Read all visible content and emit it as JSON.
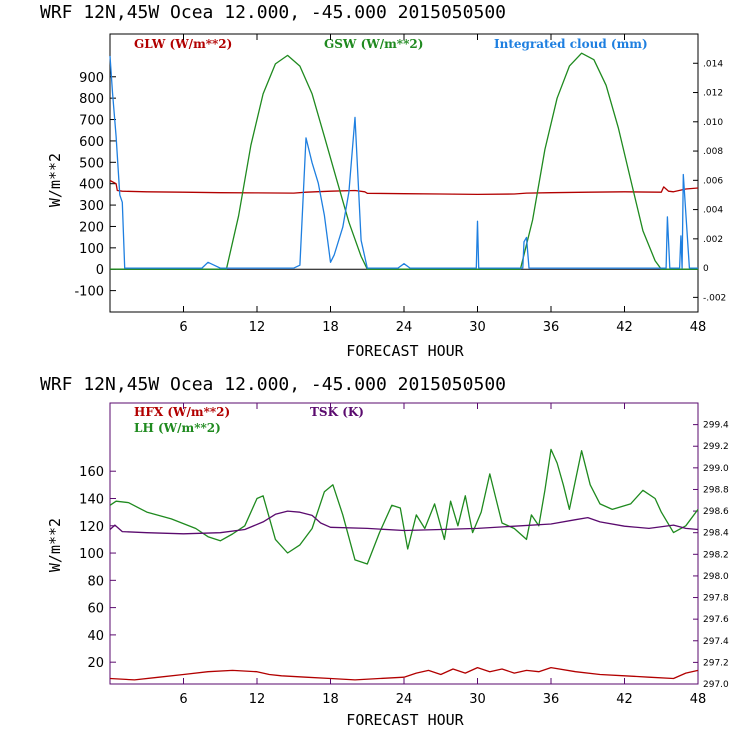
{
  "colors": {
    "glw": "#b20000",
    "gsw": "#1f8a1f",
    "cloud": "#1e7fe0",
    "hfx": "#b20000",
    "lh": "#1f8a1f",
    "tsk": "#5a0a6e",
    "frame_top": "#000000",
    "frame_bottom": "#5a0a6e"
  },
  "chart_data": [
    {
      "type": "line",
      "title": "WRF   12N,45W Ocea  12.000, -45.000  2015050500",
      "xlabel": "FORECAST HOUR",
      "ylabel": "W/m**2",
      "xlim": [
        0,
        48
      ],
      "ylim": [
        -200,
        1100
      ],
      "xticks": [
        6,
        12,
        18,
        24,
        30,
        36,
        42,
        48
      ],
      "xtick_labels": [
        "6",
        "12",
        "18",
        "24",
        "30",
        "36",
        "42",
        "48"
      ],
      "yticks": [
        -100,
        0,
        100,
        200,
        300,
        400,
        500,
        600,
        700,
        800,
        900
      ],
      "ytick_labels": [
        "-100",
        "0",
        "100",
        "200",
        "300",
        "400",
        "500",
        "600",
        "700",
        "800",
        "900"
      ],
      "y2label": "Integrated cloud (mm)",
      "y2lim": [
        -0.003,
        0.016
      ],
      "y2ticks": [
        -0.002,
        0,
        0.002,
        0.004,
        0.006,
        0.008,
        0.01,
        0.012,
        0.014
      ],
      "y2tick_labels": [
        "-.002",
        "0",
        ".002",
        ".004",
        ".006",
        ".008",
        ".010",
        ".012",
        ".014"
      ],
      "series": [
        {
          "name": "GLW (W/m**2)",
          "axis": "left",
          "x": [
            0,
            0.5,
            0.6,
            1,
            3,
            6,
            9,
            12,
            15,
            16,
            18,
            20,
            20.8,
            21,
            24,
            27,
            30,
            33,
            34,
            36,
            39,
            42,
            45,
            45.2,
            45.6,
            46,
            47,
            48
          ],
          "values": [
            415,
            400,
            368,
            365,
            362,
            360,
            358,
            357,
            356,
            360,
            365,
            368,
            362,
            355,
            353,
            352,
            350,
            352,
            356,
            358,
            360,
            362,
            360,
            385,
            365,
            362,
            375,
            380
          ]
        },
        {
          "name": "GSW (W/m**2)",
          "axis": "left",
          "x": [
            0,
            9.5,
            10.5,
            11.5,
            12.5,
            13.5,
            14.5,
            15.5,
            16.5,
            17.5,
            18.5,
            19.5,
            20.5,
            21,
            33.5,
            34.5,
            35.5,
            36.5,
            37.5,
            38.5,
            39.5,
            40.5,
            41.5,
            42.5,
            43.5,
            44.5,
            45,
            48
          ],
          "values": [
            0,
            0,
            250,
            580,
            820,
            960,
            1000,
            950,
            820,
            620,
            420,
            220,
            60,
            0,
            0,
            230,
            560,
            800,
            950,
            1010,
            980,
            860,
            660,
            420,
            180,
            40,
            0,
            0
          ]
        },
        {
          "name": "Integrated cloud (mm)",
          "axis": "right",
          "x": [
            0,
            0.2,
            0.5,
            0.8,
            1.0,
            1.2,
            2,
            7.5,
            8.0,
            8.5,
            9.0,
            15,
            15.5,
            16.0,
            16.5,
            17.0,
            17.5,
            18.0,
            18.3,
            19.0,
            19.5,
            20.0,
            20.5,
            21.0,
            23.5,
            24.0,
            24.5,
            29.9,
            30.0,
            30.1,
            33.7,
            33.8,
            34.0,
            34.2,
            45.4,
            45.5,
            45.7,
            46.5,
            46.6,
            46.7,
            46.8,
            47.3,
            48
          ],
          "values": [
            0.0145,
            0.012,
            0.009,
            0.005,
            0.0045,
            0,
            0,
            0,
            0.0004,
            0.0002,
            0,
            0,
            0.0002,
            0.0089,
            0.0072,
            0.0058,
            0.0036,
            0.0004,
            0.0009,
            0.0028,
            0.0052,
            0.0103,
            0.0019,
            0,
            0,
            0.0003,
            0,
            0,
            0.0032,
            0,
            0,
            0.0018,
            0.0021,
            0,
            0,
            0.0035,
            0,
            0,
            0.0022,
            0,
            0.0064,
            0,
            0
          ]
        }
      ]
    },
    {
      "type": "line",
      "title": "WRF   12N,45W Ocea  12.000, -45.000  2015050500",
      "xlabel": "FORECAST HOUR",
      "ylabel": "W/m**2",
      "xlim": [
        0,
        48
      ],
      "ylim": [
        4,
        210
      ],
      "xticks": [
        6,
        12,
        18,
        24,
        30,
        36,
        42,
        48
      ],
      "xtick_labels": [
        "6",
        "12",
        "18",
        "24",
        "30",
        "36",
        "42",
        "48"
      ],
      "yticks": [
        20,
        40,
        60,
        80,
        100,
        120,
        140,
        160
      ],
      "ytick_labels": [
        "20",
        "40",
        "60",
        "80",
        "100",
        "120",
        "140",
        "160"
      ],
      "y2label": "TSK (K)",
      "y2lim": [
        297.0,
        299.6
      ],
      "y2ticks": [
        297.0,
        297.2,
        297.4,
        297.6,
        297.8,
        298.0,
        298.2,
        298.4,
        298.6,
        298.8,
        299.0,
        299.2,
        299.4
      ],
      "y2tick_labels": [
        "297.0",
        "297.2",
        "297.4",
        "297.6",
        "297.8",
        "298.0",
        "298.2",
        "298.4",
        "298.6",
        "298.8",
        "299.0",
        "299.2",
        "299.4"
      ],
      "series": [
        {
          "name": "HFX (W/m**2)",
          "axis": "left",
          "x": [
            0,
            2,
            4,
            6,
            8,
            10,
            12,
            13,
            14,
            16,
            18,
            20,
            22,
            24,
            25,
            26,
            27,
            28,
            29,
            30,
            31,
            32,
            33,
            34,
            35,
            36,
            38,
            40,
            42,
            44,
            46,
            47,
            48
          ],
          "values": [
            8,
            7,
            9,
            11,
            13,
            14,
            13,
            11,
            10,
            9,
            8,
            7,
            8,
            9,
            12,
            14,
            11,
            15,
            12,
            16,
            13,
            15,
            12,
            14,
            13,
            16,
            13,
            11,
            10,
            9,
            8,
            12,
            14
          ]
        },
        {
          "name": "LH (W/m**2)",
          "axis": "left",
          "x": [
            0,
            0.5,
            1.5,
            3,
            5,
            7,
            8,
            9,
            10,
            11,
            12,
            12.5,
            13.5,
            14.5,
            15.5,
            16.5,
            17.5,
            18.2,
            19,
            20,
            21,
            22,
            23,
            23.7,
            24.3,
            25,
            25.7,
            26.5,
            27.3,
            27.8,
            28.4,
            29,
            29.6,
            30.3,
            31,
            31.5,
            32,
            33,
            34,
            34.4,
            35,
            35.5,
            36,
            36.5,
            37,
            37.5,
            38.5,
            39.2,
            40,
            41,
            42.5,
            43.5,
            44.5,
            45,
            46,
            47,
            48
          ],
          "values": [
            135,
            138,
            137,
            130,
            125,
            118,
            112,
            109,
            114,
            120,
            140,
            142,
            110,
            100,
            106,
            118,
            145,
            150,
            128,
            95,
            92,
            115,
            135,
            133,
            103,
            128,
            118,
            136,
            110,
            138,
            120,
            142,
            115,
            130,
            158,
            140,
            122,
            118,
            110,
            128,
            120,
            146,
            176,
            166,
            150,
            132,
            175,
            150,
            136,
            132,
            136,
            146,
            140,
            130,
            115,
            120,
            132
          ]
        },
        {
          "name": "TSK (K)",
          "axis": "right",
          "x": [
            0,
            0.4,
            1,
            3,
            6,
            9,
            11,
            12.5,
            13.5,
            14.5,
            15.5,
            16.5,
            17.2,
            18,
            21,
            24,
            27,
            30,
            33,
            36,
            38,
            39,
            40,
            42,
            44,
            46,
            47,
            48
          ],
          "values": [
            298.43,
            298.47,
            298.41,
            298.4,
            298.39,
            298.4,
            298.43,
            298.5,
            298.57,
            298.6,
            298.59,
            298.56,
            298.49,
            298.45,
            298.44,
            298.42,
            298.43,
            298.44,
            298.46,
            298.48,
            298.52,
            298.54,
            298.5,
            298.46,
            298.44,
            298.47,
            298.44,
            298.43
          ]
        }
      ]
    }
  ]
}
